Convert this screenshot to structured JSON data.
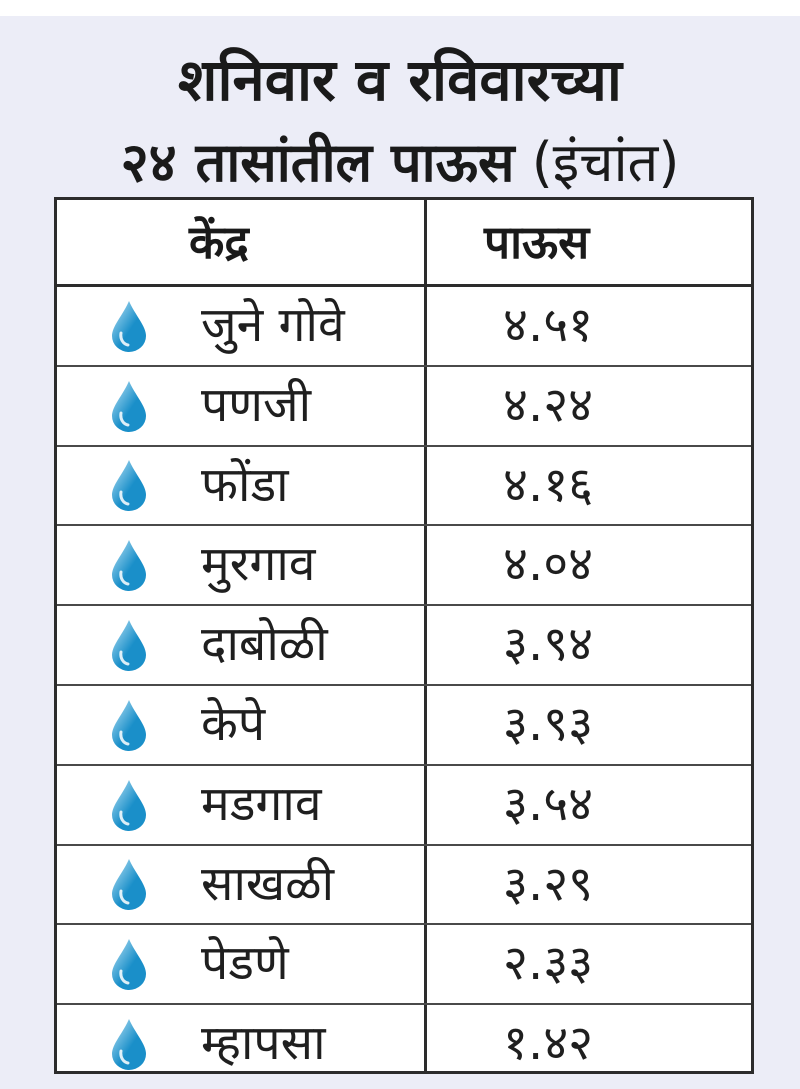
{
  "title": {
    "line1": "शनिवार व रविवारच्या",
    "line2_bold": "२४ तासांतील पाऊस",
    "line2_unit": "(इंचांत)"
  },
  "table": {
    "header": {
      "station": "केंद्र",
      "rainfall": "पाऊस"
    },
    "rows": [
      {
        "station": "जुने गोवे",
        "rainfall": "४.५१",
        "icon": "water-drop-icon"
      },
      {
        "station": "पणजी",
        "rainfall": "४.२४",
        "icon": "water-drop-icon"
      },
      {
        "station": "फोंडा",
        "rainfall": "४.१६",
        "icon": "water-drop-icon"
      },
      {
        "station": "मुरगाव",
        "rainfall": "४.०४",
        "icon": "water-drop-icon"
      },
      {
        "station": "दाबोळी",
        "rainfall": "३.९४",
        "icon": "water-drop-icon"
      },
      {
        "station": "केपे",
        "rainfall": "३.९३",
        "icon": "water-drop-icon"
      },
      {
        "station": "मडगाव",
        "rainfall": "३.५४",
        "icon": "water-drop-icon"
      },
      {
        "station": "साखळी",
        "rainfall": "३.२९",
        "icon": "water-drop-icon"
      },
      {
        "station": "पेडणे",
        "rainfall": "२.३३",
        "icon": "water-drop-icon"
      },
      {
        "station": "म्हापसा",
        "rainfall": "१.४२",
        "icon": "water-drop-icon"
      }
    ]
  },
  "colors": {
    "panel_background": "#ecedf7",
    "drop_dark": "#1a8fc9",
    "drop_light": "#bfe6f7"
  }
}
